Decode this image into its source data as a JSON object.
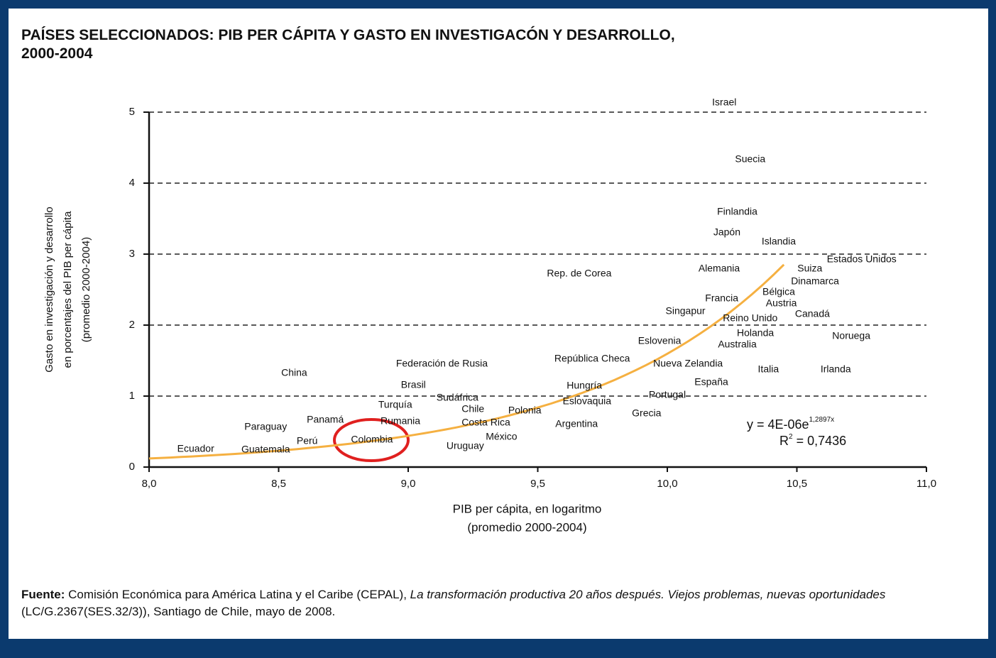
{
  "chart_data": {
    "type": "scatter",
    "title": "PAÍSES SELECCIONADOS: PIB PER CÁPITA Y GASTO EN INVESTIGACÓN Y DESARROLLO,",
    "title_line2": "2000-2004",
    "y_label": [
      "Gasto en investigación y desarrollo",
      "en porcentajes del PIB per cápita",
      "(promedio 2000-2004)"
    ],
    "x_label": [
      "PIB per cápita, en logaritmo",
      "(promedio 2000-2004)"
    ],
    "xlim": [
      8.0,
      11.0
    ],
    "ylim": [
      0,
      5
    ],
    "xticks": [
      {
        "value": 8.0,
        "label": "8,0"
      },
      {
        "value": 8.5,
        "label": "8,5"
      },
      {
        "value": 9.0,
        "label": "9,0"
      },
      {
        "value": 9.5,
        "label": "9,5"
      },
      {
        "value": 10.0,
        "label": "10,0"
      },
      {
        "value": 10.5,
        "label": "10,5"
      },
      {
        "value": 11.0,
        "label": "11,0"
      }
    ],
    "yticks": [
      0,
      1,
      2,
      3,
      4,
      5
    ],
    "grid": true,
    "points": [
      {
        "label": "Israel",
        "x": 10.22,
        "y": 5.13,
        "color": "#111111"
      },
      {
        "label": "Suecia",
        "x": 10.32,
        "y": 4.33,
        "color": "#111111"
      },
      {
        "label": "Finlandia",
        "x": 10.27,
        "y": 3.59,
        "color": "#111111"
      },
      {
        "label": "Japón",
        "x": 10.23,
        "y": 3.3,
        "color": "#111111"
      },
      {
        "label": "Islandia",
        "x": 10.43,
        "y": 3.17,
        "color": "#111111"
      },
      {
        "label": "Estados Unidos",
        "x": 10.75,
        "y": 2.92,
        "color": "#111111"
      },
      {
        "label": "Suiza",
        "x": 10.55,
        "y": 2.79,
        "color": "#111111"
      },
      {
        "label": "Alemania",
        "x": 10.2,
        "y": 2.79,
        "color": "#111111"
      },
      {
        "label": "Rep. de Corea",
        "x": 9.66,
        "y": 2.72,
        "color": "#111111"
      },
      {
        "label": "Dinamarca",
        "x": 10.57,
        "y": 2.61,
        "color": "#111111"
      },
      {
        "label": "Bélgica",
        "x": 10.43,
        "y": 2.46,
        "color": "#111111"
      },
      {
        "label": "Francia",
        "x": 10.21,
        "y": 2.37,
        "color": "#111111"
      },
      {
        "label": "Austria",
        "x": 10.44,
        "y": 2.3,
        "color": "#111111"
      },
      {
        "label": "Singapur",
        "x": 10.07,
        "y": 2.19,
        "color": "#111111"
      },
      {
        "label": "Canadá",
        "x": 10.56,
        "y": 2.15,
        "color": "#111111"
      },
      {
        "label": "Reino Unido",
        "x": 10.32,
        "y": 2.09,
        "color": "#111111"
      },
      {
        "label": "Holanda",
        "x": 10.34,
        "y": 1.88,
        "color": "#111111"
      },
      {
        "label": "Noruega",
        "x": 10.71,
        "y": 1.84,
        "color": "#111111"
      },
      {
        "label": "Eslovenia",
        "x": 9.97,
        "y": 1.77,
        "color": "#111111"
      },
      {
        "label": "Australia",
        "x": 10.27,
        "y": 1.72,
        "color": "#111111"
      },
      {
        "label": "Federación de Rusia",
        "x": 9.13,
        "y": 1.45,
        "color": "#111111"
      },
      {
        "label": "República Checa",
        "x": 9.71,
        "y": 1.52,
        "color": "#111111"
      },
      {
        "label": "Nueva Zelandia",
        "x": 10.08,
        "y": 1.45,
        "color": "#111111"
      },
      {
        "label": "China",
        "x": 8.56,
        "y": 1.32,
        "color": "#111111"
      },
      {
        "label": "Italia",
        "x": 10.39,
        "y": 1.37,
        "color": "#111111"
      },
      {
        "label": "Irlanda",
        "x": 10.65,
        "y": 1.37,
        "color": "#111111"
      },
      {
        "label": "España",
        "x": 10.17,
        "y": 1.19,
        "color": "#c0304a"
      },
      {
        "label": "Brasil",
        "x": 9.02,
        "y": 1.15,
        "color": "#2e9a3e"
      },
      {
        "label": "Hungría",
        "x": 9.68,
        "y": 1.14,
        "color": "#111111"
      },
      {
        "label": "Portugal",
        "x": 10.0,
        "y": 1.01,
        "color": "#c0304a"
      },
      {
        "label": "Sudáfrica",
        "x": 9.19,
        "y": 0.97,
        "color": "#111111"
      },
      {
        "label": "Eslovaquia",
        "x": 9.69,
        "y": 0.92,
        "color": "#111111"
      },
      {
        "label": "Turquía",
        "x": 8.95,
        "y": 0.87,
        "color": "#111111"
      },
      {
        "label": "Chile",
        "x": 9.25,
        "y": 0.81,
        "color": "#2e9a3e"
      },
      {
        "label": "Polonia",
        "x": 9.45,
        "y": 0.79,
        "color": "#111111"
      },
      {
        "label": "Grecia",
        "x": 9.92,
        "y": 0.75,
        "color": "#111111"
      },
      {
        "label": "Panamá",
        "x": 8.68,
        "y": 0.66,
        "color": "#2e9a3e"
      },
      {
        "label": "Rumania",
        "x": 8.97,
        "y": 0.64,
        "color": "#111111"
      },
      {
        "label": "Costa Rica",
        "x": 9.3,
        "y": 0.62,
        "color": "#2e9a3e"
      },
      {
        "label": "Argentina",
        "x": 9.65,
        "y": 0.6,
        "color": "#2e9a3e"
      },
      {
        "label": "Paraguay",
        "x": 8.45,
        "y": 0.56,
        "color": "#2e9a3e"
      },
      {
        "label": "México",
        "x": 9.36,
        "y": 0.42,
        "color": "#2e9a3e"
      },
      {
        "label": "Perú",
        "x": 8.61,
        "y": 0.36,
        "color": "#2e9a3e"
      },
      {
        "label": "Colombia",
        "x": 8.86,
        "y": 0.38,
        "color": "#2e9a3e"
      },
      {
        "label": "Uruguay",
        "x": 9.22,
        "y": 0.29,
        "color": "#2e9a3e"
      },
      {
        "label": "Ecuador",
        "x": 8.18,
        "y": 0.25,
        "color": "#2e9a3e"
      },
      {
        "label": "Guatemala",
        "x": 8.45,
        "y": 0.24,
        "color": "#2e9a3e"
      }
    ],
    "trend": {
      "coef": 4e-06,
      "exp": 1.2897,
      "x_end": 10.45,
      "color": "#f5b041",
      "equation": "y = 4E-06e",
      "equation_exponent": "1,2897x",
      "r2": "R",
      "r2_sup": "2",
      "r2_value": " = 0,7436"
    },
    "source_label": "Fuente:",
    "source_text_1": " Comisión Económica para América Latina y el Caribe (CEPAL), ",
    "source_title": "La transformación productiva 20 años después. Viejos problemas, nuevas oportunidades",
    "source_text_2": " (LC/G.2367(SES.32/3)), Santiago de Chile, mayo de 2008."
  }
}
